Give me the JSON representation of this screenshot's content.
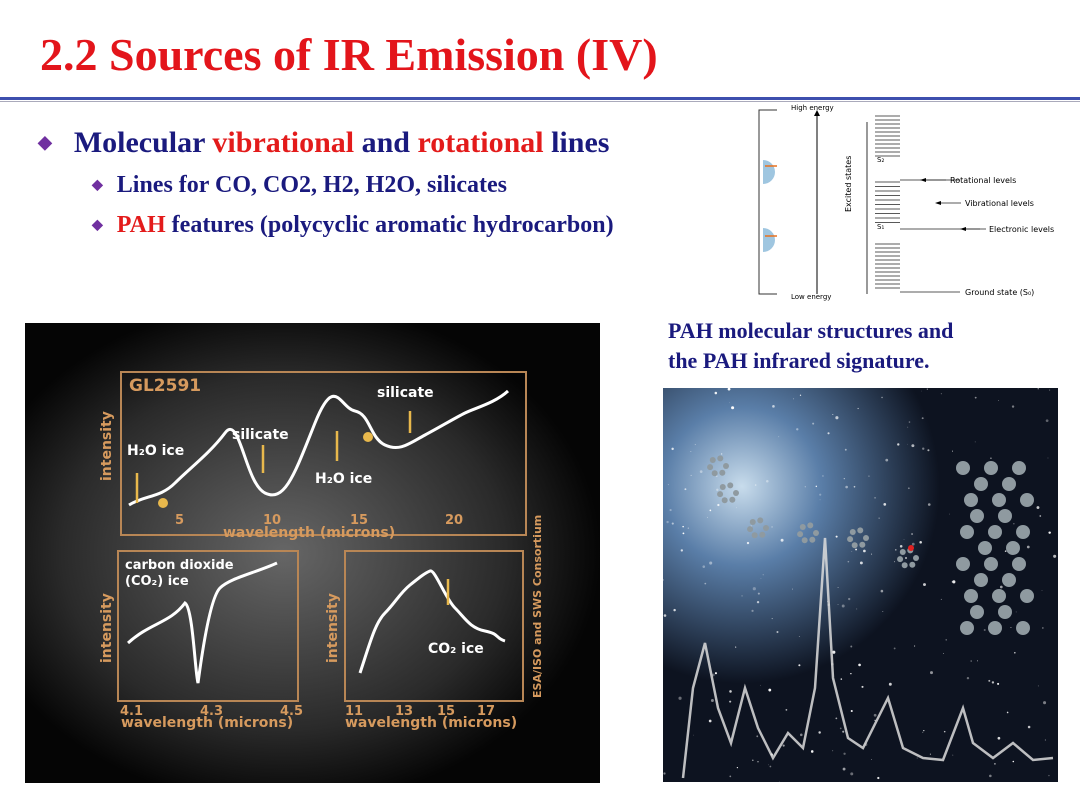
{
  "header": {
    "title": "2.2 Sources of IR Emission (IV)"
  },
  "bullets": [
    {
      "parts": [
        "Molecular ",
        "vibrational",
        " and ",
        "rotational",
        " lines"
      ]
    },
    {
      "parts": [
        "Lines for CO, CO2, H2, H2O, silicates"
      ]
    },
    {
      "parts": [
        "PAH",
        " features (polycyclic aromatic hydrocarbon)"
      ]
    }
  ],
  "energy_diagram": {
    "high": "High energy",
    "low": "Low energy",
    "excited": "Excited states",
    "s2": "S₂",
    "s1": "S₁",
    "rotational": "Rotational levels",
    "vibrational": "Vibrational levels",
    "electronic": "Electronic levels",
    "ground": "Ground state (S₀)"
  },
  "spectrum_figure": {
    "source": "GL2591",
    "top": {
      "ylabel": "intensity",
      "labels": [
        "H₂O ice",
        "silicate",
        "silicate",
        "H₂O ice"
      ],
      "ticks": [
        "5",
        "10",
        "15",
        "20"
      ],
      "xlabel": "wavelength (microns)"
    },
    "left": {
      "ylabel": "intensity",
      "labels": [
        "carbon dioxide",
        "(CO₂) ice"
      ],
      "ticks": [
        "4.1",
        "4.3",
        "4.5"
      ],
      "xlabel": "wavelength (microns)"
    },
    "right": {
      "ylabel": "intensity",
      "labels": [
        "CO₂ ice"
      ],
      "ticks": [
        "11",
        "13",
        "15",
        "17"
      ],
      "xlabel": "wavelength (microns)"
    },
    "credit": "ESA/ISO and SWS Consortium"
  },
  "caption": {
    "lines": [
      "PAH molecular structures and",
      "the PAH infrared signature."
    ]
  }
}
